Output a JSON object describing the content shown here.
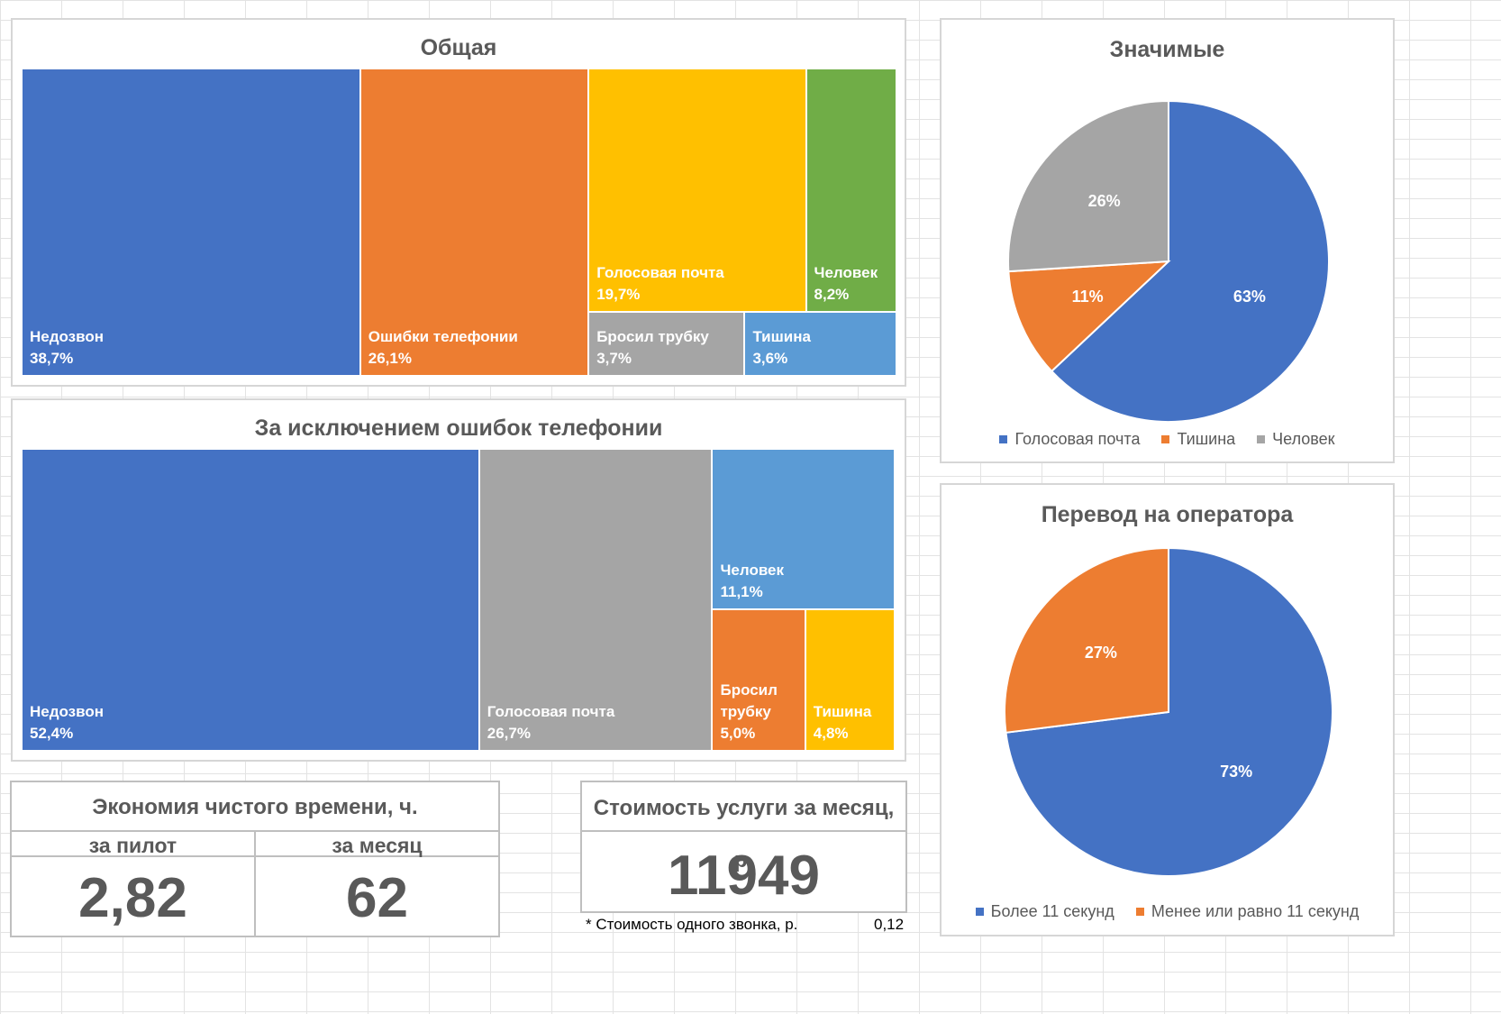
{
  "chart_data": [
    {
      "type": "treemap",
      "title": "Общая",
      "colors": [
        "#4472c4",
        "#ed7d31",
        "#ffc000",
        "#70ad47",
        "#a5a5a5",
        "#5b9bd5"
      ],
      "items": [
        {
          "name": "Недозвон",
          "value": 38.7,
          "label": "38,7%"
        },
        {
          "name": "Ошибки телефонии",
          "value": 26.1,
          "label": "26,1%"
        },
        {
          "name": "Голосовая почта",
          "value": 19.7,
          "label": "19,7%"
        },
        {
          "name": "Человек",
          "value": 8.2,
          "label": "8,2%"
        },
        {
          "name": "Бросил трубку",
          "value": 3.7,
          "label": "3,7%"
        },
        {
          "name": "Тишина",
          "value": 3.6,
          "label": "3,6%"
        }
      ]
    },
    {
      "type": "treemap",
      "title": "За исключением ошибок телефонии",
      "colors": [
        "#4472c4",
        "#a5a5a5",
        "#5b9bd5",
        "#ed7d31",
        "#ffc000"
      ],
      "items": [
        {
          "name": "Недозвон",
          "value": 52.4,
          "label": "52,4%"
        },
        {
          "name": "Голосовая почта",
          "value": 26.7,
          "label": "26,7%"
        },
        {
          "name": "Человек",
          "value": 11.1,
          "label": "11,1%"
        },
        {
          "name": "Бросил\nтрубку",
          "value": 5.0,
          "label": "5,0%"
        },
        {
          "name": "Тишина",
          "value": 4.8,
          "label": "4,8%"
        }
      ]
    },
    {
      "type": "pie",
      "title": "Значимые",
      "categories": [
        "Голосовая почта",
        "Тишина",
        "Человек"
      ],
      "values": [
        63,
        11,
        26
      ],
      "labels": [
        "63%",
        "11%",
        "26%"
      ],
      "colors": [
        "#4472c4",
        "#ed7d31",
        "#a5a5a5"
      ],
      "legend": "bottom"
    },
    {
      "type": "pie",
      "title": "Перевод на оператора",
      "categories": [
        "Более 11 секунд",
        "Менее или равно 11 секунд"
      ],
      "values": [
        73,
        27
      ],
      "labels": [
        "73%",
        "27%"
      ],
      "colors": [
        "#4472c4",
        "#ed7d31"
      ],
      "legend": "bottom"
    }
  ],
  "kpi": {
    "savings_title": "Экономия чистого времени, ч.",
    "pilot_label": "за пилот",
    "month_label": "за месяц",
    "pilot_value": "2,82",
    "month_value": "62",
    "cost_title": "Стоимость услуги за месяц, р.",
    "cost_value": "11949",
    "note": "* Стоимость одного звонка, р.",
    "note_value": "0,12"
  }
}
